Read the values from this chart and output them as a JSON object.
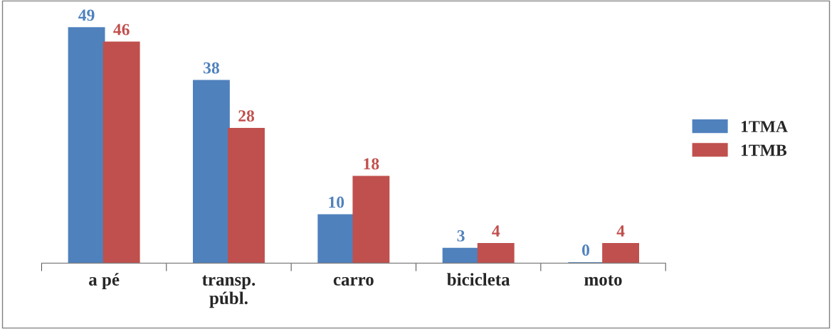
{
  "chart_data": {
    "type": "bar",
    "categories": [
      "a pé",
      "transp.\npúbl.",
      "carro",
      "bicicleta",
      "moto"
    ],
    "series": [
      {
        "name": "1TMA",
        "color": "#4f81bd",
        "values": [
          49,
          38,
          10,
          3,
          0
        ]
      },
      {
        "name": "1TMB",
        "color": "#c0504d",
        "values": [
          46,
          28,
          18,
          4,
          4
        ]
      }
    ],
    "data_labels": true,
    "grid": false,
    "legend": "right"
  }
}
